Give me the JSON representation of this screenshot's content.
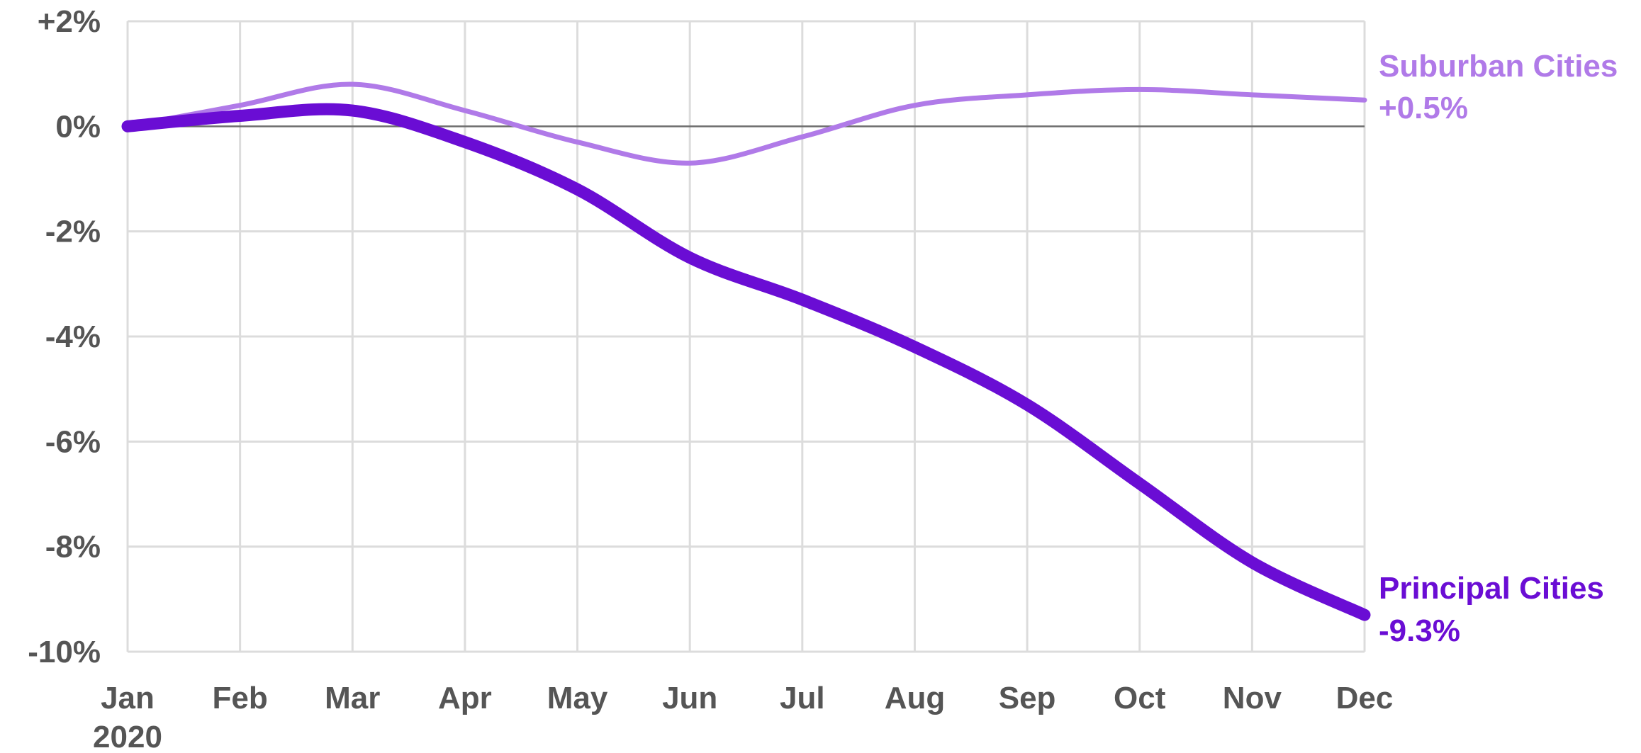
{
  "chart_data": {
    "type": "line",
    "categories": [
      "Jan",
      "Feb",
      "Mar",
      "Apr",
      "May",
      "Jun",
      "Jul",
      "Aug",
      "Sep",
      "Oct",
      "Nov",
      "Dec"
    ],
    "x_sublabel": "2020",
    "y_ticks": [
      "+2%",
      "0%",
      "-2%",
      "-4%",
      "-6%",
      "-8%",
      "-10%"
    ],
    "y_tick_values": [
      2,
      0,
      -2,
      -4,
      -6,
      -8,
      -10
    ],
    "ylim": [
      -10,
      2
    ],
    "grid": true,
    "series": [
      {
        "name": "Suburban Cities",
        "end_label": "+0.5%",
        "color": "#b07ae8",
        "values": [
          0.0,
          0.4,
          0.8,
          0.3,
          -0.3,
          -0.7,
          -0.2,
          0.4,
          0.6,
          0.7,
          0.6,
          0.5
        ]
      },
      {
        "name": "Principal Cities",
        "end_label": "-9.3%",
        "color": "#6a0dd4",
        "values": [
          0.0,
          0.2,
          0.3,
          -0.3,
          -1.2,
          -2.5,
          -3.3,
          -4.2,
          -5.3,
          -6.8,
          -8.3,
          -9.3
        ]
      }
    ]
  }
}
